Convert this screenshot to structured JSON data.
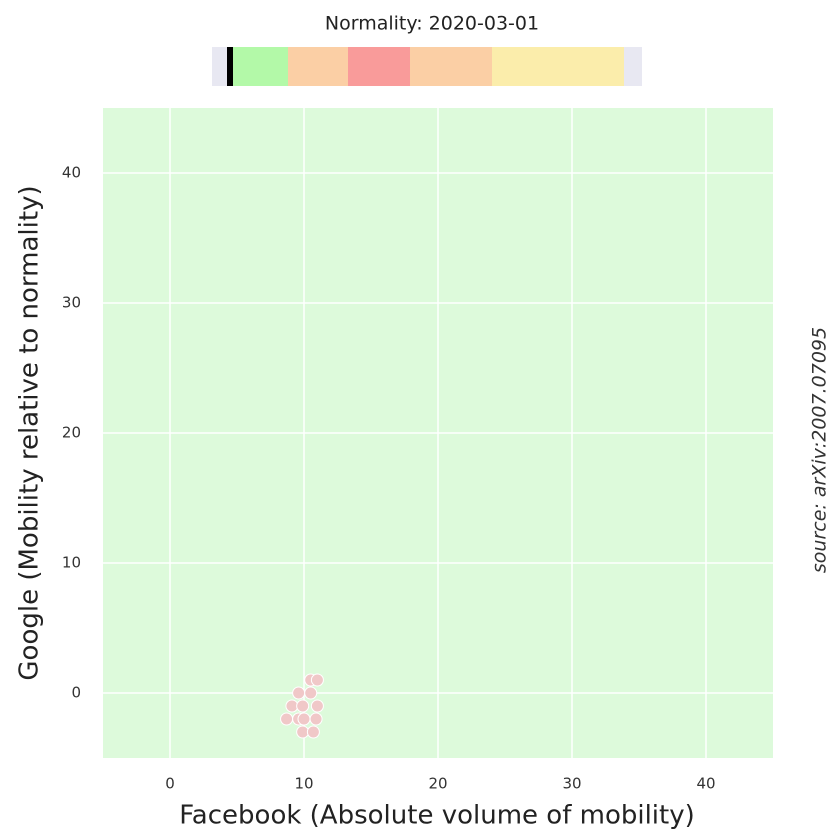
{
  "chart_data": {
    "type": "scatter",
    "title": "Normality: 2020-03-01",
    "x_label": "Facebook (Absolute volume of mobility)",
    "y_label": "Google (Mobility relative to normality)",
    "annotation": "source: arXiv:2007.07095",
    "x": [
      10.5,
      11.0,
      9.6,
      10.5,
      9.1,
      9.9,
      11.0,
      8.7,
      9.6,
      10.0,
      10.9,
      9.9,
      10.7
    ],
    "y": [
      1,
      1,
      0,
      0,
      -1,
      -1,
      -1,
      -2,
      -2,
      -2,
      -2,
      -3,
      -3
    ],
    "color": "#f0c8c8",
    "background": "#ddfadb",
    "xlim": [
      -5,
      45
    ],
    "ylim": [
      -5,
      45
    ],
    "xticks": [
      0,
      10,
      20,
      30,
      40
    ],
    "yticks": [
      0,
      10,
      20,
      30,
      40
    ],
    "grid": true
  }
}
